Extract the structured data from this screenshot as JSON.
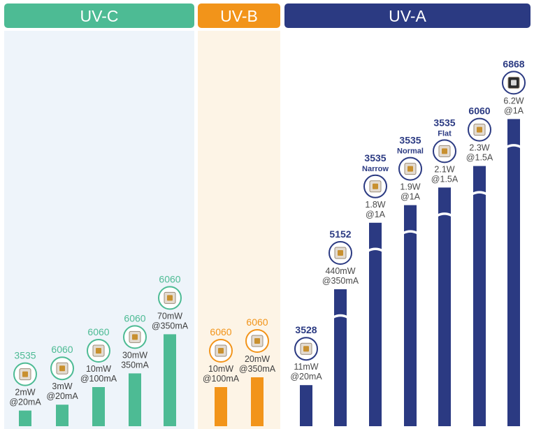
{
  "chart_data": {
    "type": "bar",
    "title": "",
    "xlabel": "",
    "ylabel": "",
    "colors": {
      "uvc": "#4dbb94",
      "uvb": "#f2941a",
      "uva": "#2b3a82",
      "uvc_bg": "#eef4fa",
      "uvb_bg": "#fdf4e6",
      "uva_bg": "#ffffff"
    },
    "groups": [
      {
        "name": "UV-C",
        "color_key": "uvc",
        "items": [
          {
            "package": "3535",
            "variant": "",
            "power_line": "2mW",
            "current_line": "@20mA",
            "relative_height": 0.04,
            "icon": "led-3535-icon"
          },
          {
            "package": "6060",
            "variant": "",
            "power_line": "3mW",
            "current_line": "@20mA",
            "relative_height": 0.055,
            "icon": "led-6060-icon"
          },
          {
            "package": "6060",
            "variant": "",
            "power_line": "10mW",
            "current_line": "@100mA",
            "relative_height": 0.1,
            "icon": "led-6060-icon"
          },
          {
            "package": "6060",
            "variant": "",
            "power_line": "30mW",
            "current_line": "350mA",
            "relative_height": 0.135,
            "icon": "led-6060-icon"
          },
          {
            "package": "6060",
            "variant": "",
            "power_line": "70mW",
            "current_line": "@350mA",
            "relative_height": 0.235,
            "icon": "led-6060-icon"
          }
        ]
      },
      {
        "name": "UV-B",
        "color_key": "uvb",
        "items": [
          {
            "package": "6060",
            "variant": "",
            "power_line": "10mW",
            "current_line": "@100mA",
            "relative_height": 0.1,
            "icon": "led-6060-icon"
          },
          {
            "package": "6060",
            "variant": "",
            "power_line": "20mW",
            "current_line": "@350mA",
            "relative_height": 0.125,
            "icon": "led-6060-icon"
          }
        ]
      },
      {
        "name": "UV-A",
        "color_key": "uva",
        "items": [
          {
            "package": "3528",
            "variant": "",
            "power_line": "11mW",
            "current_line": "@20mA",
            "relative_height": 0.105,
            "icon": "led-3528-icon",
            "broken": false
          },
          {
            "package": "5152",
            "variant": "",
            "power_line": "440mW",
            "current_line": "@350mA",
            "relative_height": 0.35,
            "icon": "led-5152-icon",
            "broken": true
          },
          {
            "package": "3535",
            "variant": "Narrow",
            "power_line": "1.8W",
            "current_line": "@1A",
            "relative_height": 0.52,
            "icon": "led-3535-narrow-icon",
            "broken": true
          },
          {
            "package": "3535",
            "variant": "Normal",
            "power_line": "1.9W",
            "current_line": "@1A",
            "relative_height": 0.565,
            "icon": "led-3535-normal-icon",
            "broken": true
          },
          {
            "package": "3535",
            "variant": "Flat",
            "power_line": "2.1W",
            "current_line": "@1.5A",
            "relative_height": 0.61,
            "icon": "led-3535-flat-icon",
            "broken": true
          },
          {
            "package": "6060",
            "variant": "",
            "power_line": "2.3W",
            "current_line": "@1.5A",
            "relative_height": 0.665,
            "icon": "led-6060-icon",
            "broken": true
          },
          {
            "package": "6868",
            "variant": "",
            "power_line": "6.2W",
            "current_line": "@1A",
            "relative_height": 0.785,
            "icon": "led-6868-icon",
            "broken": true
          }
        ]
      }
    ]
  }
}
